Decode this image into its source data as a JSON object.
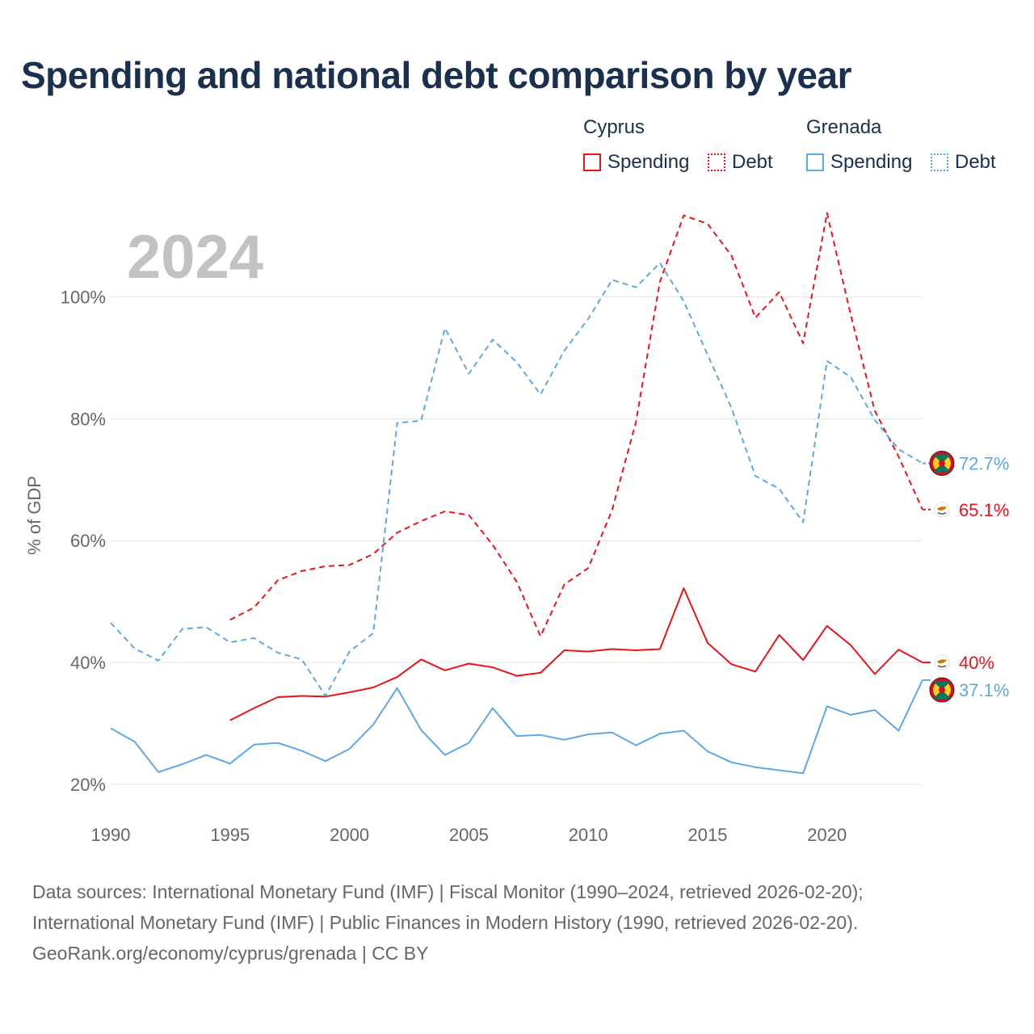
{
  "title": "Spending and national debt comparison by year",
  "legend": {
    "groups": [
      {
        "name": "Cyprus",
        "color": "#e8141c",
        "items": [
          "Spending",
          "Debt"
        ]
      },
      {
        "name": "Grenada",
        "color": "#5ea7e5",
        "items": [
          "Spending",
          "Debt"
        ]
      }
    ]
  },
  "footer": {
    "line1": "Data sources: International Monetary Fund (IMF) | Fiscal Monitor (1990–2024, retrieved 2026-02-20);",
    "line2": "International Monetary Fund (IMF) | Public Finances in Modern History (1990, retrieved 2026-02-20).",
    "line3": "GeoRank.org/economy/cyprus/grenada | CC BY"
  },
  "chart_data": {
    "type": "line",
    "title": "Spending and national debt comparison by year",
    "year_label": "2024",
    "xlabel": "",
    "ylabel": "% of GDP",
    "xlim": [
      1990,
      2024
    ],
    "ylim": [
      16,
      116
    ],
    "x_ticks": [
      1990,
      1995,
      2000,
      2005,
      2010,
      2015,
      2020
    ],
    "y_ticks": [
      20,
      40,
      60,
      80,
      100
    ],
    "y_tick_labels": [
      "20%",
      "40%",
      "60%",
      "80%",
      "100%"
    ],
    "grid": true,
    "legend_position": "top-right",
    "series": [
      {
        "name": "Cyprus Spending",
        "country": "Cyprus",
        "metric": "Spending",
        "color": "#e8141c",
        "dashed": false,
        "flag": "cyprus-flag-icon",
        "end_label": "40%",
        "points": [
          [
            1995,
            30.5
          ],
          [
            1996,
            32.5
          ],
          [
            1997,
            34.3
          ],
          [
            1998,
            34.5
          ],
          [
            1999,
            34.4
          ],
          [
            2000,
            35.1
          ],
          [
            2001,
            35.9
          ],
          [
            2002,
            37.6
          ],
          [
            2003,
            40.5
          ],
          [
            2004,
            38.7
          ],
          [
            2005,
            39.8
          ],
          [
            2006,
            39.2
          ],
          [
            2007,
            37.8
          ],
          [
            2008,
            38.3
          ],
          [
            2009,
            42.0
          ],
          [
            2010,
            41.8
          ],
          [
            2011,
            42.2
          ],
          [
            2012,
            42.0
          ],
          [
            2013,
            42.2
          ],
          [
            2014,
            52.2
          ],
          [
            2015,
            43.2
          ],
          [
            2016,
            39.7
          ],
          [
            2017,
            38.5
          ],
          [
            2018,
            44.5
          ],
          [
            2019,
            40.4
          ],
          [
            2020,
            46.0
          ],
          [
            2021,
            42.8
          ],
          [
            2022,
            38.1
          ],
          [
            2023,
            42.1
          ],
          [
            2024,
            40.0
          ]
        ]
      },
      {
        "name": "Cyprus Debt",
        "country": "Cyprus",
        "metric": "Debt",
        "color": "#e8141c",
        "dashed": true,
        "flag": "cyprus-flag-icon",
        "end_label": "65.1%",
        "points": [
          [
            1995,
            47.0
          ],
          [
            1996,
            49.0
          ],
          [
            1997,
            53.5
          ],
          [
            1998,
            55.0
          ],
          [
            1999,
            55.8
          ],
          [
            2000,
            56.0
          ],
          [
            2001,
            57.8
          ],
          [
            2002,
            61.3
          ],
          [
            2003,
            63.2
          ],
          [
            2004,
            64.8
          ],
          [
            2005,
            64.2
          ],
          [
            2006,
            59.3
          ],
          [
            2007,
            53.3
          ],
          [
            2008,
            44.3
          ],
          [
            2009,
            52.8
          ],
          [
            2010,
            55.5
          ],
          [
            2011,
            65.0
          ],
          [
            2012,
            79.5
          ],
          [
            2013,
            102.5
          ],
          [
            2014,
            113.4
          ],
          [
            2015,
            112.0
          ],
          [
            2016,
            106.8
          ],
          [
            2017,
            96.6
          ],
          [
            2018,
            100.8
          ],
          [
            2019,
            92.4
          ],
          [
            2020,
            113.8
          ],
          [
            2021,
            97.0
          ],
          [
            2022,
            81.3
          ],
          [
            2023,
            73.8
          ],
          [
            2024,
            65.1
          ]
        ]
      },
      {
        "name": "Grenada Spending",
        "country": "Grenada",
        "metric": "Spending",
        "color": "#5ea7e5",
        "dashed": false,
        "flag": "grenada-flag-icon",
        "end_label": "37.1%",
        "points": [
          [
            1990,
            29.2
          ],
          [
            1991,
            27.0
          ],
          [
            1992,
            22.0
          ],
          [
            1993,
            23.3
          ],
          [
            1994,
            24.8
          ],
          [
            1995,
            23.4
          ],
          [
            1996,
            26.5
          ],
          [
            1997,
            26.8
          ],
          [
            1998,
            25.5
          ],
          [
            1999,
            23.8
          ],
          [
            2000,
            25.8
          ],
          [
            2001,
            29.8
          ],
          [
            2002,
            35.8
          ],
          [
            2003,
            28.9
          ],
          [
            2004,
            24.8
          ],
          [
            2005,
            26.8
          ],
          [
            2006,
            32.5
          ],
          [
            2007,
            27.9
          ],
          [
            2008,
            28.1
          ],
          [
            2009,
            27.3
          ],
          [
            2010,
            28.2
          ],
          [
            2011,
            28.5
          ],
          [
            2012,
            26.4
          ],
          [
            2013,
            28.3
          ],
          [
            2014,
            28.8
          ],
          [
            2015,
            25.4
          ],
          [
            2016,
            23.6
          ],
          [
            2017,
            22.8
          ],
          [
            2018,
            22.3
          ],
          [
            2019,
            21.8
          ],
          [
            2020,
            32.8
          ],
          [
            2021,
            31.4
          ],
          [
            2022,
            32.2
          ],
          [
            2023,
            28.8
          ],
          [
            2024,
            37.1
          ]
        ]
      },
      {
        "name": "Grenada Debt",
        "country": "Grenada",
        "metric": "Debt",
        "color": "#5ea7e5",
        "dashed": true,
        "flag": "grenada-flag-icon",
        "end_label": "72.7%",
        "points": [
          [
            1990,
            46.5
          ],
          [
            1991,
            42.3
          ],
          [
            1992,
            40.3
          ],
          [
            1993,
            45.5
          ],
          [
            1994,
            45.8
          ],
          [
            1995,
            43.3
          ],
          [
            1996,
            44.0
          ],
          [
            1997,
            41.6
          ],
          [
            1998,
            40.5
          ],
          [
            1999,
            34.5
          ],
          [
            2000,
            41.8
          ],
          [
            2001,
            44.8
          ],
          [
            2002,
            79.3
          ],
          [
            2003,
            79.7
          ],
          [
            2004,
            94.9
          ],
          [
            2005,
            87.4
          ],
          [
            2006,
            93.0
          ],
          [
            2007,
            89.3
          ],
          [
            2008,
            84.0
          ],
          [
            2009,
            91.2
          ],
          [
            2010,
            96.4
          ],
          [
            2011,
            102.8
          ],
          [
            2012,
            101.6
          ],
          [
            2013,
            105.6
          ],
          [
            2014,
            99.3
          ],
          [
            2015,
            90.5
          ],
          [
            2016,
            81.8
          ],
          [
            2017,
            70.6
          ],
          [
            2018,
            68.5
          ],
          [
            2019,
            63.0
          ],
          [
            2020,
            89.5
          ],
          [
            2021,
            86.8
          ],
          [
            2022,
            79.8
          ],
          [
            2023,
            75.0
          ],
          [
            2024,
            72.7
          ]
        ]
      }
    ]
  }
}
